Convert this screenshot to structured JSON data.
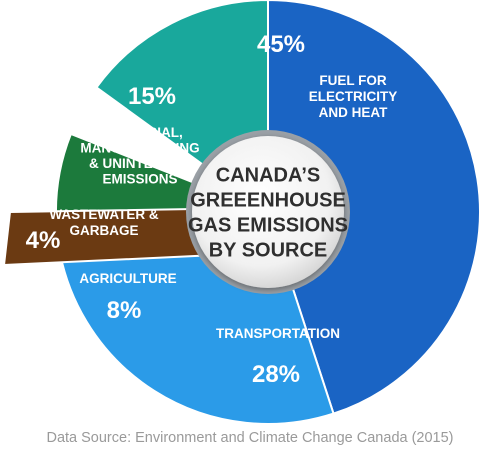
{
  "chart_data": {
    "type": "pie",
    "title": "CANADA'S GREEENHOUSE GAS EMISSIONS BY SOURCE",
    "title_lines": [
      "CANADA’S",
      "GREEENHOUSE",
      "GAS EMISSIONS",
      "BY SOURCE"
    ],
    "slices": [
      {
        "label": "FUEL FOR ELECTRICITY AND HEAT",
        "label_lines": [
          "FUEL FOR",
          "ELECTRICITY",
          "AND HEAT"
        ],
        "value": 45,
        "value_label": "45%",
        "color": "#1a64c4"
      },
      {
        "label": "TRANSPORTATION",
        "label_lines": [
          "TRANSPORTATION"
        ],
        "value": 28,
        "value_label": "28%",
        "color": "#2b9be8"
      },
      {
        "label": "AGRICULTURE",
        "label_lines": [
          "AGRICULTURE"
        ],
        "value": 8,
        "value_label": "8%",
        "color": "#1c7a3c"
      },
      {
        "label": "WASTEWATER & GARBAGE",
        "label_lines": [
          "WASTEWATER &",
          "GARBAGE"
        ],
        "value": 4,
        "value_label": "4%",
        "color": "#6b3a12",
        "exploded": true
      },
      {
        "label": "INDUSTRIAL, MANUFACTURING & UNINTENDED EMISSIONS",
        "label_lines": [
          "INDUSTRIAL,",
          "MANUFACTURING",
          "& UNINTENDED",
          "EMISSIONS"
        ],
        "value": 15,
        "value_label": "15%",
        "color": "#19a89c"
      }
    ]
  },
  "source_note": "Data Source: Environment and Climate Change Canada (2015)"
}
